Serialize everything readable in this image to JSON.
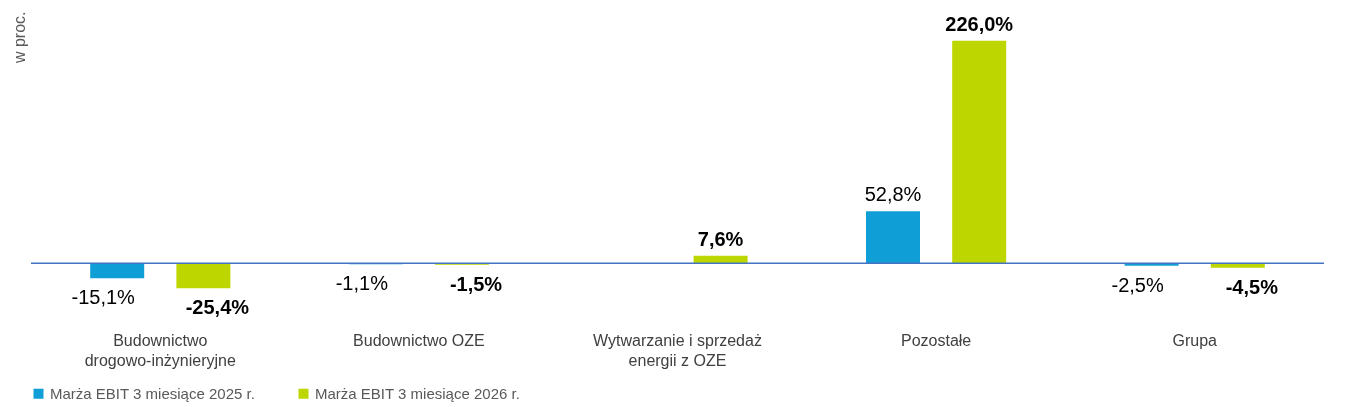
{
  "chart_data": {
    "type": "bar",
    "ylabel": "w proc.",
    "categories": [
      "Budownictwo drogowo-inżynieryjne",
      "Budownictwo OZE",
      "Wytwarzanie i sprzedaż energii z OZE",
      "Pozostałe",
      "Grupa"
    ],
    "series": [
      {
        "name": "Marża EBIT 3 miesiące 2025 r.",
        "color": "#0f9ed5",
        "values": [
          -15.1,
          -1.1,
          0,
          52.8,
          -2.5
        ],
        "value_labels": [
          "-15,1%",
          "-1,1%",
          null,
          "52,8%",
          "-2,5%"
        ]
      },
      {
        "name": "Marża EBIT 3 miesiące 2026 r.",
        "color": "#bed600",
        "values": [
          -25.4,
          -1.5,
          7.6,
          226.0,
          -4.5
        ],
        "value_labels": [
          "-25,4%",
          "-1,5%",
          "7,6%",
          "226,0%",
          "-4,5%"
        ]
      }
    ],
    "ref_lines": [
      {
        "axis": "y",
        "value": 0,
        "color": "#4472c4"
      }
    ],
    "legend": "bottom",
    "grid": false
  }
}
